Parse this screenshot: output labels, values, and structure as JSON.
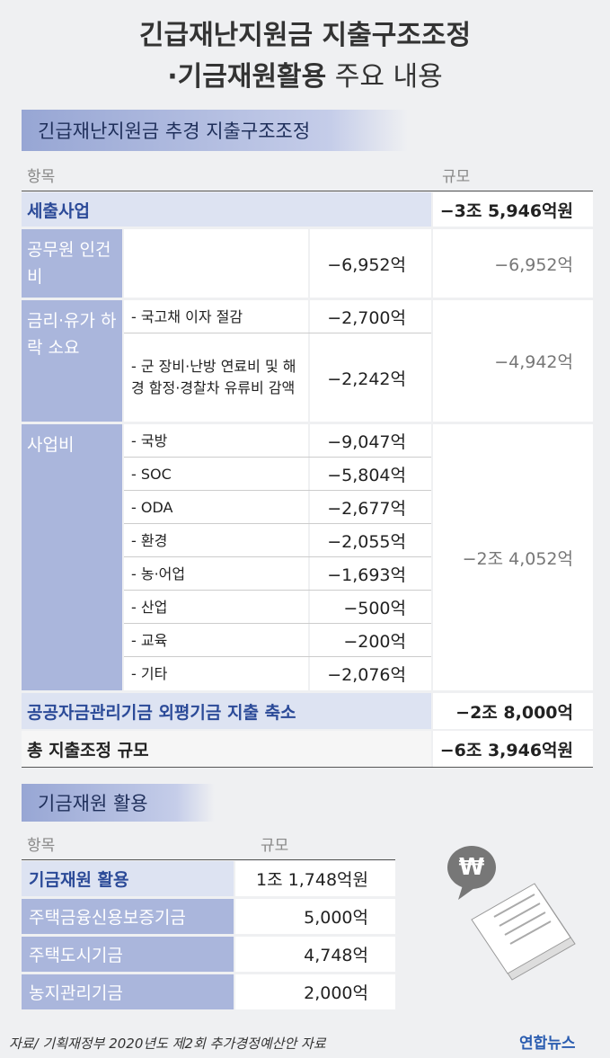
{
  "title": {
    "line1": "긴급재난지원금 지출구조조정",
    "line2_bold": "·기금재원활용",
    "line2_light": "주요 내용"
  },
  "section1": {
    "header": "긴급재난지원금 추경 지출구조조정",
    "col_item": "항목",
    "col_size": "규모",
    "expenditure": {
      "label": "세출사업",
      "amount": "−3조 5,946억원"
    },
    "groups": [
      {
        "label": "공무원 인건비",
        "subtotal": "−6,952억",
        "items": [
          {
            "label": "",
            "amount": "−6,952억"
          }
        ]
      },
      {
        "label": "금리·유가 하락 소요",
        "subtotal": "−4,942억",
        "items": [
          {
            "label": "- 국고채 이자 절감",
            "amount": "−2,700억"
          },
          {
            "label": "- 군 장비·난방 연료비 및 해경 함정·경찰차 유류비 감액",
            "amount": "−2,242억"
          }
        ]
      },
      {
        "label": "사업비",
        "subtotal": "−2조 4,052억",
        "items": [
          {
            "label": "- 국방",
            "amount": "−9,047억"
          },
          {
            "label": "- SOC",
            "amount": "−5,804억"
          },
          {
            "label": "- ODA",
            "amount": "−2,677억"
          },
          {
            "label": "- 환경",
            "amount": "−2,055억"
          },
          {
            "label": "- 농·어업",
            "amount": "−1,693억"
          },
          {
            "label": "- 산업",
            "amount": "−500억"
          },
          {
            "label": "- 교육",
            "amount": "−200억"
          },
          {
            "label": "- 기타",
            "amount": "−2,076억"
          }
        ]
      }
    ],
    "fund_cut": {
      "label": "공공자금관리기금 외평기금 지출 축소",
      "amount": "−2조 8,000억"
    },
    "total": {
      "label": "총 지출조정 규모",
      "amount": "−6조 3,946억원"
    }
  },
  "section2": {
    "header": "기금재원 활용",
    "col_item": "항목",
    "col_size": "규모",
    "rows": [
      {
        "label": "기금재원 활용",
        "amount": "1조 1,748억원"
      },
      {
        "label": "주택금융신용보증기금",
        "amount": "5,000억"
      },
      {
        "label": "주택도시기금",
        "amount": "4,748억"
      },
      {
        "label": "농지관리기금",
        "amount": "2,000억"
      }
    ]
  },
  "source": "자료/ 기획재정부 2020년도 제2회 추가경정예산안 자료",
  "logo": "연합뉴스"
}
